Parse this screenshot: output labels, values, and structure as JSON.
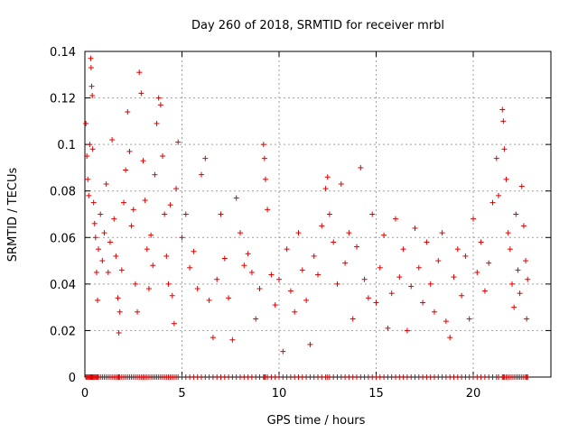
{
  "chart_data": {
    "type": "scatter",
    "title": "Day 260 of 2018, SRMTID for receiver mrbl",
    "xlabel": "GPS time / hours",
    "ylabel": "SRMTID / TECUs",
    "xlim": [
      0,
      24
    ],
    "ylim": [
      0,
      0.14
    ],
    "xticks": [
      0,
      5,
      10,
      15,
      20
    ],
    "xtick_labels": [
      "0",
      "5",
      "10",
      "15",
      "20"
    ],
    "yticks": [
      0,
      0.02,
      0.04,
      0.06,
      0.08,
      0.1,
      0.12,
      0.14
    ],
    "ytick_labels": [
      "0",
      "0.02",
      "0.04",
      "0.06",
      "0.08",
      "0.1",
      "0.12",
      "0.14"
    ],
    "grid": true,
    "marker": "+",
    "color": "#dd0000",
    "series": [
      {
        "name": "SRMTID",
        "description": "approximate reconstruction of the dense point cloud",
        "points": [
          [
            0.05,
            0.109
          ],
          [
            0.1,
            0.095
          ],
          [
            0.15,
            0.085
          ],
          [
            0.2,
            0.078
          ],
          [
            0.25,
            0.1
          ],
          [
            0.3,
            0.137
          ],
          [
            0.32,
            0.133
          ],
          [
            0.35,
            0.125
          ],
          [
            0.38,
            0.121
          ],
          [
            0.4,
            0.098
          ],
          [
            0.45,
            0.075
          ],
          [
            0.5,
            0.066
          ],
          [
            0.55,
            0.06
          ],
          [
            0.6,
            0.045
          ],
          [
            0.65,
            0.033
          ],
          [
            0.7,
            0.055
          ],
          [
            0.8,
            0.07
          ],
          [
            0.9,
            0.05
          ],
          [
            1.0,
            0.062
          ],
          [
            1.1,
            0.083
          ],
          [
            1.2,
            0.045
          ],
          [
            1.3,
            0.058
          ],
          [
            1.4,
            0.102
          ],
          [
            1.5,
            0.068
          ],
          [
            1.6,
            0.052
          ],
          [
            1.7,
            0.034
          ],
          [
            1.75,
            0.019
          ],
          [
            1.8,
            0.028
          ],
          [
            1.9,
            0.046
          ],
          [
            2.0,
            0.075
          ],
          [
            2.1,
            0.089
          ],
          [
            2.2,
            0.114
          ],
          [
            2.3,
            0.097
          ],
          [
            2.4,
            0.065
          ],
          [
            2.5,
            0.072
          ],
          [
            2.6,
            0.04
          ],
          [
            2.7,
            0.028
          ],
          [
            2.8,
            0.131
          ],
          [
            2.9,
            0.122
          ],
          [
            3.0,
            0.093
          ],
          [
            3.1,
            0.076
          ],
          [
            3.2,
            0.055
          ],
          [
            3.3,
            0.038
          ],
          [
            3.4,
            0.061
          ],
          [
            3.5,
            0.048
          ],
          [
            3.6,
            0.087
          ],
          [
            3.7,
            0.109
          ],
          [
            3.8,
            0.12
          ],
          [
            3.9,
            0.117
          ],
          [
            4.0,
            0.095
          ],
          [
            4.1,
            0.07
          ],
          [
            4.2,
            0.052
          ],
          [
            4.3,
            0.04
          ],
          [
            4.4,
            0.074
          ],
          [
            4.5,
            0.035
          ],
          [
            4.6,
            0.023
          ],
          [
            4.7,
            0.081
          ],
          [
            4.8,
            0.101
          ],
          [
            5.0,
            0.06
          ],
          [
            5.2,
            0.07
          ],
          [
            5.4,
            0.047
          ],
          [
            5.6,
            0.054
          ],
          [
            5.8,
            0.038
          ],
          [
            6.0,
            0.087
          ],
          [
            6.2,
            0.094
          ],
          [
            6.4,
            0.033
          ],
          [
            6.6,
            0.017
          ],
          [
            6.8,
            0.042
          ],
          [
            7.0,
            0.07
          ],
          [
            7.2,
            0.051
          ],
          [
            7.4,
            0.034
          ],
          [
            7.6,
            0.016
          ],
          [
            7.8,
            0.077
          ],
          [
            8.0,
            0.062
          ],
          [
            8.2,
            0.048
          ],
          [
            8.4,
            0.053
          ],
          [
            8.6,
            0.045
          ],
          [
            8.8,
            0.025
          ],
          [
            9.0,
            0.038
          ],
          [
            9.2,
            0.1
          ],
          [
            9.25,
            0.094
          ],
          [
            9.3,
            0.085
          ],
          [
            9.4,
            0.072
          ],
          [
            9.6,
            0.044
          ],
          [
            9.8,
            0.031
          ],
          [
            10.0,
            0.042
          ],
          [
            10.2,
            0.011
          ],
          [
            10.4,
            0.055
          ],
          [
            10.6,
            0.037
          ],
          [
            10.8,
            0.028
          ],
          [
            11.0,
            0.062
          ],
          [
            11.2,
            0.046
          ],
          [
            11.4,
            0.033
          ],
          [
            11.6,
            0.014
          ],
          [
            11.8,
            0.052
          ],
          [
            12.0,
            0.044
          ],
          [
            12.2,
            0.065
          ],
          [
            12.4,
            0.081
          ],
          [
            12.5,
            0.086
          ],
          [
            12.6,
            0.07
          ],
          [
            12.8,
            0.058
          ],
          [
            13.0,
            0.04
          ],
          [
            13.2,
            0.083
          ],
          [
            13.4,
            0.049
          ],
          [
            13.6,
            0.062
          ],
          [
            13.8,
            0.025
          ],
          [
            14.0,
            0.056
          ],
          [
            14.2,
            0.09
          ],
          [
            14.4,
            0.042
          ],
          [
            14.6,
            0.034
          ],
          [
            14.8,
            0.07
          ],
          [
            15.0,
            0.032
          ],
          [
            15.2,
            0.047
          ],
          [
            15.4,
            0.061
          ],
          [
            15.6,
            0.021
          ],
          [
            15.8,
            0.036
          ],
          [
            16.0,
            0.068
          ],
          [
            16.2,
            0.043
          ],
          [
            16.4,
            0.055
          ],
          [
            16.6,
            0.02
          ],
          [
            16.8,
            0.039
          ],
          [
            17.0,
            0.064
          ],
          [
            17.2,
            0.047
          ],
          [
            17.4,
            0.032
          ],
          [
            17.6,
            0.058
          ],
          [
            17.8,
            0.04
          ],
          [
            18.0,
            0.028
          ],
          [
            18.2,
            0.05
          ],
          [
            18.4,
            0.062
          ],
          [
            18.6,
            0.024
          ],
          [
            18.8,
            0.017
          ],
          [
            19.0,
            0.043
          ],
          [
            19.2,
            0.055
          ],
          [
            19.4,
            0.035
          ],
          [
            19.6,
            0.052
          ],
          [
            19.8,
            0.025
          ],
          [
            20.0,
            0.068
          ],
          [
            20.2,
            0.045
          ],
          [
            20.4,
            0.058
          ],
          [
            20.6,
            0.037
          ],
          [
            20.8,
            0.049
          ],
          [
            21.0,
            0.075
          ],
          [
            21.2,
            0.094
          ],
          [
            21.3,
            0.078
          ],
          [
            21.5,
            0.115
          ],
          [
            21.55,
            0.11
          ],
          [
            21.6,
            0.098
          ],
          [
            21.7,
            0.085
          ],
          [
            21.8,
            0.062
          ],
          [
            21.9,
            0.055
          ],
          [
            22.0,
            0.04
          ],
          [
            22.1,
            0.03
          ],
          [
            22.2,
            0.07
          ],
          [
            22.3,
            0.046
          ],
          [
            22.4,
            0.036
          ],
          [
            22.5,
            0.082
          ],
          [
            22.6,
            0.065
          ],
          [
            22.7,
            0.05
          ],
          [
            22.75,
            0.025
          ],
          [
            22.8,
            0.042
          ]
        ]
      }
    ]
  }
}
